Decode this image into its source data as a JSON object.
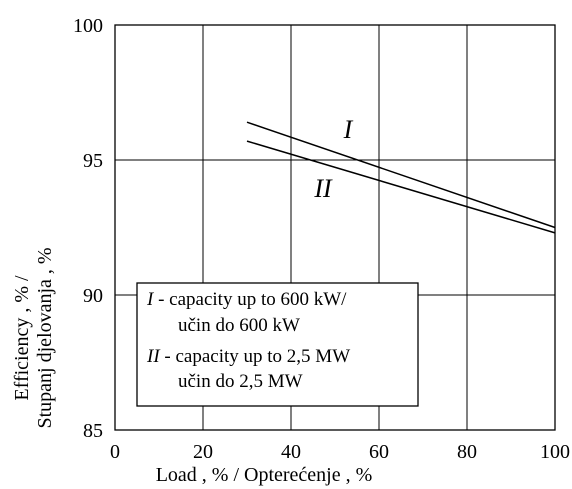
{
  "chart_data": {
    "type": "line",
    "title": "",
    "xlabel": "Load , %  / Opterećenje , %",
    "ylabel_lines": [
      "Efficiency , %  /",
      "Stupanj djelovanja , %"
    ],
    "xlim": [
      0,
      100
    ],
    "ylim": [
      85,
      100
    ],
    "xticks": [
      0,
      20,
      40,
      60,
      80,
      100
    ],
    "yticks": [
      85,
      90,
      95,
      100
    ],
    "grid": true,
    "series": [
      {
        "name": "I",
        "x": [
          30,
          100
        ],
        "y": [
          96.4,
          92.5
        ]
      },
      {
        "name": "II",
        "x": [
          30,
          100
        ],
        "y": [
          95.7,
          92.3
        ]
      }
    ],
    "legend": {
      "placement": "bottom-left",
      "entries": [
        {
          "roman": "I",
          "line1": " - capacity up to 600 kW/",
          "line2": "učin do 600 kW"
        },
        {
          "roman": "II",
          "line1": " - capacity up to 2,5 MW",
          "line2": "učin do 2,5 MW"
        }
      ]
    },
    "colors": {
      "line": "#000000",
      "grid": "#000000"
    }
  }
}
